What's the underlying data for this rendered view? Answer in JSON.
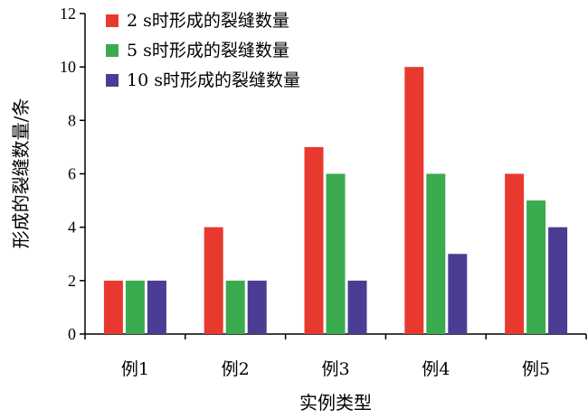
{
  "chart_data": {
    "type": "bar",
    "xlabel": "实例类型",
    "ylabel": "形成的裂缝数量/条",
    "ylim": [
      0,
      12
    ],
    "yticks": [
      0,
      2,
      4,
      6,
      8,
      10,
      12
    ],
    "categories": [
      "例1",
      "例2",
      "例3",
      "例4",
      "例5"
    ],
    "series": [
      {
        "name": "2 s时形成的裂缝数量",
        "color": "#e8392f",
        "values": [
          2,
          4,
          7,
          10,
          6
        ]
      },
      {
        "name": "5 s时形成的裂缝数量",
        "color": "#3aab4f",
        "values": [
          2,
          2,
          6,
          6,
          5
        ]
      },
      {
        "name": "10 s时形成的裂缝数量",
        "color": "#4a3d93",
        "values": [
          2,
          2,
          2,
          3,
          4
        ]
      }
    ],
    "grid": false,
    "legend_position": "top-left"
  }
}
